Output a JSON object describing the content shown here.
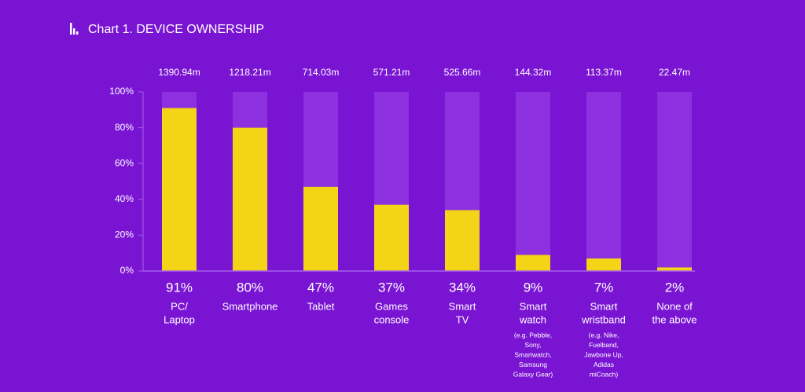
{
  "chart_data": {
    "type": "bar",
    "title": "Chart 1. DEVICE OWNERSHIP",
    "categories": [
      [
        "PC/",
        "Laptop"
      ],
      [
        "Smartphone"
      ],
      [
        "Tablet"
      ],
      [
        "Games",
        "console"
      ],
      [
        "Smart",
        "TV"
      ],
      [
        "Smart",
        "watch"
      ],
      [
        "Smart",
        "wristband"
      ],
      [
        "None of",
        "the above"
      ]
    ],
    "notes": [
      [],
      [],
      [],
      [],
      [],
      [
        "(e.g. Pebble,",
        "Sony,",
        "Smartwatch,",
        "Samsung",
        "Galaxy Gear)"
      ],
      [
        "(e.g. Nike,",
        "Fuelband,",
        "Jawbone Up,",
        "Adidas",
        "miCoach)"
      ],
      []
    ],
    "totals": [
      "1390.94m",
      "1218.21m",
      "714.03m",
      "571.21m",
      "525.66m",
      "144.32m",
      "113.37m",
      "22.47m"
    ],
    "values": [
      91,
      80,
      47,
      37,
      34,
      9,
      7,
      2
    ],
    "value_labels": [
      "91%",
      "80%",
      "47%",
      "37%",
      "34%",
      "9%",
      "7%",
      "2%"
    ],
    "color": "#f4d416",
    "ylim": [
      0,
      100
    ],
    "yticks": [
      {
        "value": 0,
        "label": "0%"
      },
      {
        "value": 20,
        "label": "20%"
      },
      {
        "value": 40,
        "label": "40%"
      },
      {
        "value": 60,
        "label": "60%"
      },
      {
        "value": 80,
        "label": "80%"
      },
      {
        "value": 100,
        "label": "100%"
      }
    ]
  }
}
